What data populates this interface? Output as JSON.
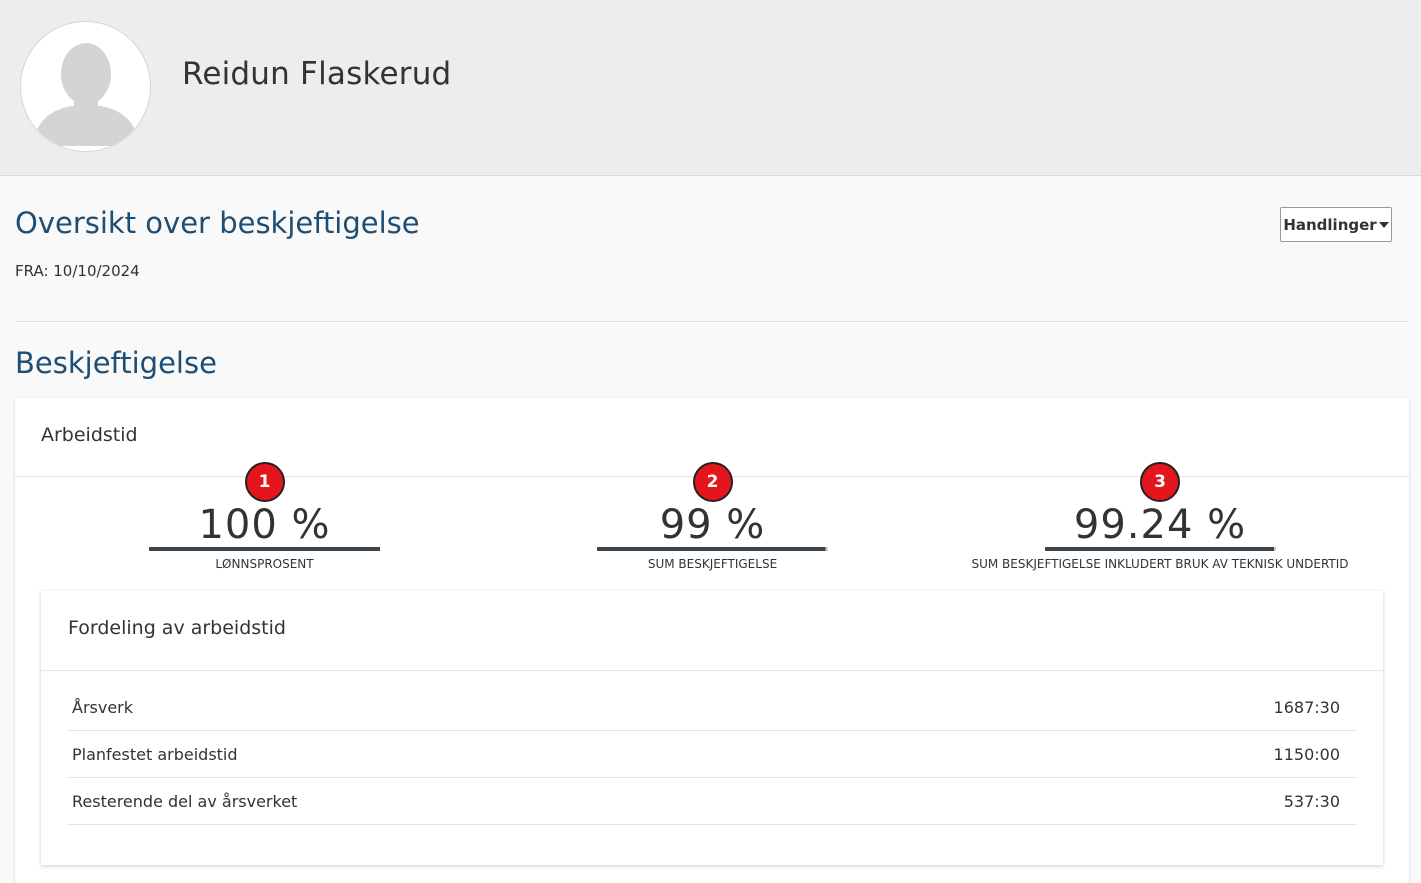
{
  "header": {
    "user_name": "Reidun Flaskerud",
    "avatar_icon": "user-silhouette-icon"
  },
  "page": {
    "title": "Oversikt over beskjeftigelse",
    "from_date": "FRA: 10/10/2024",
    "actions_label": "Handlinger"
  },
  "section": {
    "title": "Beskjeftigelse"
  },
  "card": {
    "title": "Arbeidstid",
    "stats": [
      {
        "badge": "1",
        "value": "100 %",
        "label": "LØNNSPROSENT",
        "fill": 1.0
      },
      {
        "badge": "2",
        "value": "99 %",
        "label": "SUM BESKJEFTIGELSE",
        "fill": 0.99
      },
      {
        "badge": "3",
        "value": "99.24 %",
        "label": "SUM BESKJEFTIGELSE INKLUDERT BRUK AV TEKNISK UNDERTID",
        "fill": 0.9924
      }
    ]
  },
  "distribution": {
    "title": "Fordeling av arbeidstid",
    "rows": [
      {
        "label": "Årsverk",
        "value": "1687:30"
      },
      {
        "label": "Planfestet arbeidstid",
        "value": "1150:00"
      },
      {
        "label": "Resterende del av årsverket",
        "value": "537:30"
      }
    ]
  },
  "colors": {
    "heading": "#1d4e75",
    "badge": "#e4151d",
    "bar": "#3a444d"
  }
}
